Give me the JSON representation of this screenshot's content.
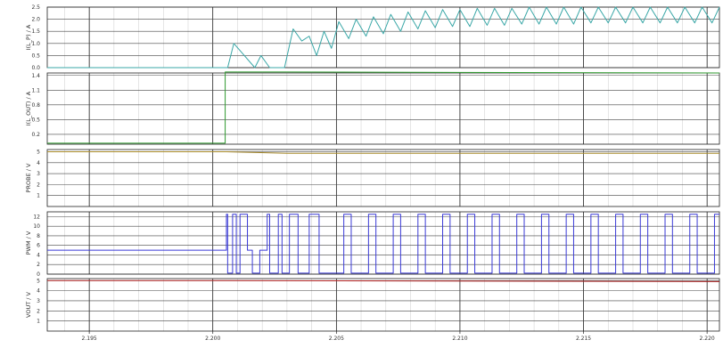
{
  "chart_data": [
    {
      "type": "line",
      "ylabel": "I(L_P) / A",
      "ylim": [
        0,
        2.5
      ],
      "yticks": [
        "0.0",
        "0.5",
        "1.0",
        "1.5",
        "2.0",
        "2.5"
      ],
      "series": [
        {
          "color": "#3aa7a7",
          "x": [
            2.1933,
            2.2006,
            2.20085,
            2.2017,
            2.20195,
            2.2023,
            2.20245,
            2.2027,
            2.2029,
            2.20325,
            2.2036,
            2.2039,
            2.2042,
            2.2045,
            2.2048,
            2.2051,
            2.2055,
            2.2058,
            2.2062,
            2.2065,
            2.2069,
            2.2072,
            2.2076,
            2.2079,
            2.2083,
            2.2086,
            2.209,
            2.2093,
            2.2097,
            2.21,
            2.2104,
            2.2107,
            2.2111,
            2.2114,
            2.2118,
            2.2121,
            2.2125,
            2.2128,
            2.2132,
            2.2135,
            2.2139,
            2.2142,
            2.2146,
            2.2149,
            2.2153,
            2.2156,
            2.216,
            2.2163,
            2.2167,
            2.217,
            2.2174,
            2.2177,
            2.2181,
            2.2184,
            2.2188,
            2.2191,
            2.2195,
            2.2198,
            2.2202,
            2.2205
          ],
          "y": [
            0.0,
            0.0,
            1.0,
            0.0,
            0.5,
            0.0,
            0.0,
            0.0,
            0.0,
            1.6,
            1.1,
            1.3,
            0.5,
            1.5,
            0.8,
            1.9,
            1.2,
            2.0,
            1.3,
            2.1,
            1.4,
            2.2,
            1.5,
            2.3,
            1.6,
            2.35,
            1.65,
            2.4,
            1.7,
            2.4,
            1.7,
            2.45,
            1.75,
            2.45,
            1.75,
            2.45,
            1.8,
            2.5,
            1.8,
            2.5,
            1.8,
            2.5,
            1.8,
            2.5,
            1.85,
            2.5,
            1.85,
            2.5,
            1.85,
            2.5,
            1.85,
            2.5,
            1.85,
            2.5,
            1.85,
            2.5,
            1.85,
            2.5,
            1.85,
            2.5
          ]
        }
      ]
    },
    {
      "type": "line",
      "ylabel": "I(L_OUT) / A",
      "ylim": [
        0,
        1.45
      ],
      "yticks": [
        "0.2",
        "0.5",
        "0.8",
        "1.1",
        "1.4"
      ],
      "series": [
        {
          "color": "#2f9a2f",
          "x": [
            2.1933,
            2.2005,
            2.2005,
            2.203,
            2.2205
          ],
          "y": [
            0.02,
            0.02,
            1.47,
            1.47,
            1.45
          ]
        }
      ]
    },
    {
      "type": "line",
      "ylabel": "PROBE / V",
      "ylim": [
        0,
        5.2
      ],
      "yticks": [
        "1",
        "2",
        "3",
        "4",
        "5"
      ],
      "series": [
        {
          "color": "#a88a2a",
          "x": [
            2.1933,
            2.2005,
            2.203,
            2.2205
          ],
          "y": [
            5.0,
            5.0,
            4.85,
            4.85
          ]
        }
      ]
    },
    {
      "type": "line",
      "ylabel": "PWM / V",
      "ylim": [
        0,
        13
      ],
      "yticks": [
        "0",
        "2",
        "4",
        "6",
        "8",
        "10",
        "12"
      ],
      "series": [
        {
          "color": "#3a3ad6",
          "x": [
            2.1933,
            2.20055,
            2.20055,
            2.2006,
            2.2006,
            2.2008,
            2.2008,
            2.20095,
            2.20095,
            2.2011,
            2.2011,
            2.2014,
            2.2014,
            2.2016,
            2.2016,
            2.2019,
            2.2019,
            2.2022,
            2.2022,
            2.2023,
            2.2023,
            2.20265,
            2.20265,
            2.2028,
            2.2028,
            2.2031,
            2.2031,
            2.20345,
            2.20345,
            2.2039,
            2.2039,
            2.2043,
            2.2043,
            2.2053,
            2.2053,
            2.2056,
            2.2056,
            2.2063,
            2.2063,
            2.2066,
            2.2066,
            2.2073,
            2.2073,
            2.2076,
            2.2076,
            2.2083,
            2.2083,
            2.2086,
            2.2086,
            2.2093,
            2.2093,
            2.2096,
            2.2096,
            2.2103,
            2.2103,
            2.2106,
            2.2106,
            2.2113,
            2.2113,
            2.2116,
            2.2116,
            2.2123,
            2.2123,
            2.2126,
            2.2126,
            2.2133,
            2.2133,
            2.2136,
            2.2136,
            2.2143,
            2.2143,
            2.2146,
            2.2146,
            2.2153,
            2.2153,
            2.2156,
            2.2156,
            2.2163,
            2.2163,
            2.2166,
            2.2166,
            2.2173,
            2.2173,
            2.2176,
            2.2176,
            2.2183,
            2.2183,
            2.2186,
            2.2186,
            2.2193,
            2.2193,
            2.2196,
            2.2196,
            2.2203,
            2.2203,
            2.2205
          ],
          "y": [
            5.0,
            5.0,
            12.5,
            12.5,
            0.2,
            0.2,
            12.5,
            12.5,
            0.2,
            0.2,
            12.5,
            12.5,
            5.0,
            5.0,
            0.2,
            0.2,
            5.0,
            5.0,
            12.5,
            12.5,
            0.2,
            0.2,
            12.5,
            12.5,
            0.2,
            0.2,
            12.5,
            12.5,
            0.2,
            0.2,
            12.5,
            12.5,
            0.2,
            0.2,
            12.5,
            12.5,
            0.2,
            0.2,
            12.5,
            12.5,
            0.2,
            0.2,
            12.5,
            12.5,
            0.2,
            0.2,
            12.5,
            12.5,
            0.2,
            0.2,
            12.5,
            12.5,
            0.2,
            0.2,
            12.5,
            12.5,
            0.2,
            0.2,
            12.5,
            12.5,
            0.2,
            0.2,
            12.5,
            12.5,
            0.2,
            0.2,
            12.5,
            12.5,
            0.2,
            0.2,
            12.5,
            12.5,
            0.2,
            0.2,
            12.5,
            12.5,
            0.2,
            0.2,
            12.5,
            12.5,
            0.2,
            0.2,
            12.5,
            12.5,
            0.2,
            0.2,
            12.5,
            12.5,
            0.2,
            0.2,
            12.5,
            12.5,
            0.2,
            0.2,
            12.5,
            12.5
          ]
        }
      ]
    },
    {
      "type": "line",
      "ylabel": "VOUT / V",
      "ylim": [
        0,
        5.2
      ],
      "yticks": [
        "1",
        "2",
        "3",
        "4",
        "5"
      ],
      "series": [
        {
          "color": "#b02020",
          "x": [
            2.1933,
            2.2005,
            2.2205
          ],
          "y": [
            5.0,
            5.0,
            4.9
          ]
        }
      ]
    }
  ],
  "shared_x": {
    "xlim": [
      2.1933,
      2.2205
    ],
    "ticks": [
      2.195,
      2.2,
      2.205,
      2.21,
      2.215,
      2.22
    ],
    "tick_labels": [
      "2.195",
      "2.200",
      "2.205",
      "2.210",
      "2.215",
      "2.220"
    ]
  }
}
